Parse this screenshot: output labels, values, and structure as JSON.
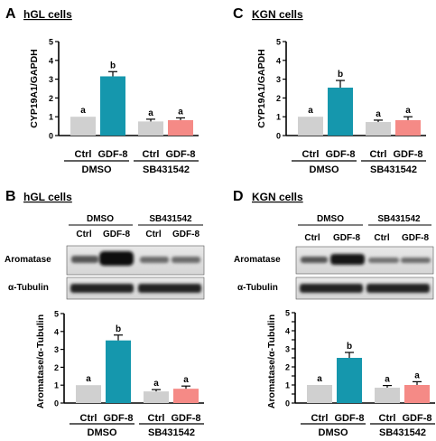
{
  "colors": {
    "ctrl": "#d0d0d0",
    "gdf": "#1597ad",
    "sb_ctrl": "#cfcfcf",
    "sb_gdf": "#f58a86",
    "axis": "#000000",
    "blot_bg": "#e6e6e6"
  },
  "panels": {
    "A": {
      "letter": "A",
      "title": "hGL cells"
    },
    "B": {
      "letter": "B",
      "title": "hGL cells"
    },
    "C": {
      "letter": "C",
      "title": "KGN cells"
    },
    "D": {
      "letter": "D",
      "title": "KGN cells"
    }
  },
  "blots": {
    "B": {
      "group1": "DMSO",
      "group2": "SB431542",
      "lanes": [
        "Ctrl",
        "GDF-8",
        "Ctrl",
        "GDF-8"
      ],
      "rows": [
        "Aromatase",
        "α-Tubulin"
      ]
    },
    "D": {
      "group1": "DMSO",
      "group2": "SB431542",
      "lanes": [
        "Ctrl",
        "GDF-8",
        "Ctrl",
        "GDF-8"
      ],
      "rows": [
        "Aromatase",
        "α-Tubulin"
      ]
    }
  },
  "chart_data": [
    {
      "id": "A",
      "type": "bar",
      "ylabel": "CYP19A1/GAPDH",
      "yticks": [
        0,
        1,
        2,
        3,
        4,
        5
      ],
      "ylim": [
        0,
        5
      ],
      "categories": [
        "Ctrl",
        "GDF-8",
        "Ctrl",
        "GDF-8"
      ],
      "groups": [
        "DMSO",
        "SB431542"
      ],
      "values": [
        1.0,
        3.15,
        0.75,
        0.82
      ],
      "errors": [
        0,
        0.25,
        0.12,
        0.12
      ],
      "letters": [
        "a",
        "b",
        "a",
        "a"
      ]
    },
    {
      "id": "C",
      "type": "bar",
      "ylabel": "CYP19A1/GAPDH",
      "yticks": [
        0,
        1,
        2,
        3,
        4,
        5
      ],
      "ylim": [
        0,
        5
      ],
      "categories": [
        "Ctrl",
        "GDF-8",
        "Ctrl",
        "GDF-8"
      ],
      "groups": [
        "DMSO",
        "SB431542"
      ],
      "values": [
        1.0,
        2.55,
        0.72,
        0.82
      ],
      "errors": [
        0,
        0.38,
        0.1,
        0.18
      ],
      "letters": [
        "a",
        "b",
        "a",
        "a"
      ]
    },
    {
      "id": "B",
      "type": "bar",
      "ylabel": "Aromatase/α-Tubulin",
      "yticks": [
        0,
        1,
        2,
        3,
        4,
        5
      ],
      "ylim": [
        0,
        5
      ],
      "categories": [
        "Ctrl",
        "GDF-8",
        "Ctrl",
        "GDF-8"
      ],
      "groups": [
        "DMSO",
        "SB431542"
      ],
      "values": [
        1.0,
        3.5,
        0.65,
        0.8
      ],
      "errors": [
        0,
        0.3,
        0.1,
        0.15
      ],
      "letters": [
        "a",
        "b",
        "a",
        "a"
      ]
    },
    {
      "id": "D",
      "type": "bar",
      "ylabel": "Aromatase/α-Tubulin",
      "yticks": [
        0,
        0.5,
        1,
        1.5,
        2,
        2.5,
        3,
        3.5,
        4,
        4.5,
        5
      ],
      "yticklabels": [
        "0",
        "",
        "1",
        "",
        "2",
        "",
        "3",
        "",
        "4",
        "",
        "5"
      ],
      "ylim": [
        0,
        5
      ],
      "categories": [
        "Ctrl",
        "GDF-8",
        "Ctrl",
        "GDF-8"
      ],
      "groups": [
        "DMSO",
        "SB431542"
      ],
      "values": [
        1.0,
        2.5,
        0.85,
        1.0
      ],
      "errors": [
        0,
        0.3,
        0.12,
        0.18
      ],
      "letters": [
        "a",
        "b",
        "a",
        "a"
      ]
    }
  ]
}
